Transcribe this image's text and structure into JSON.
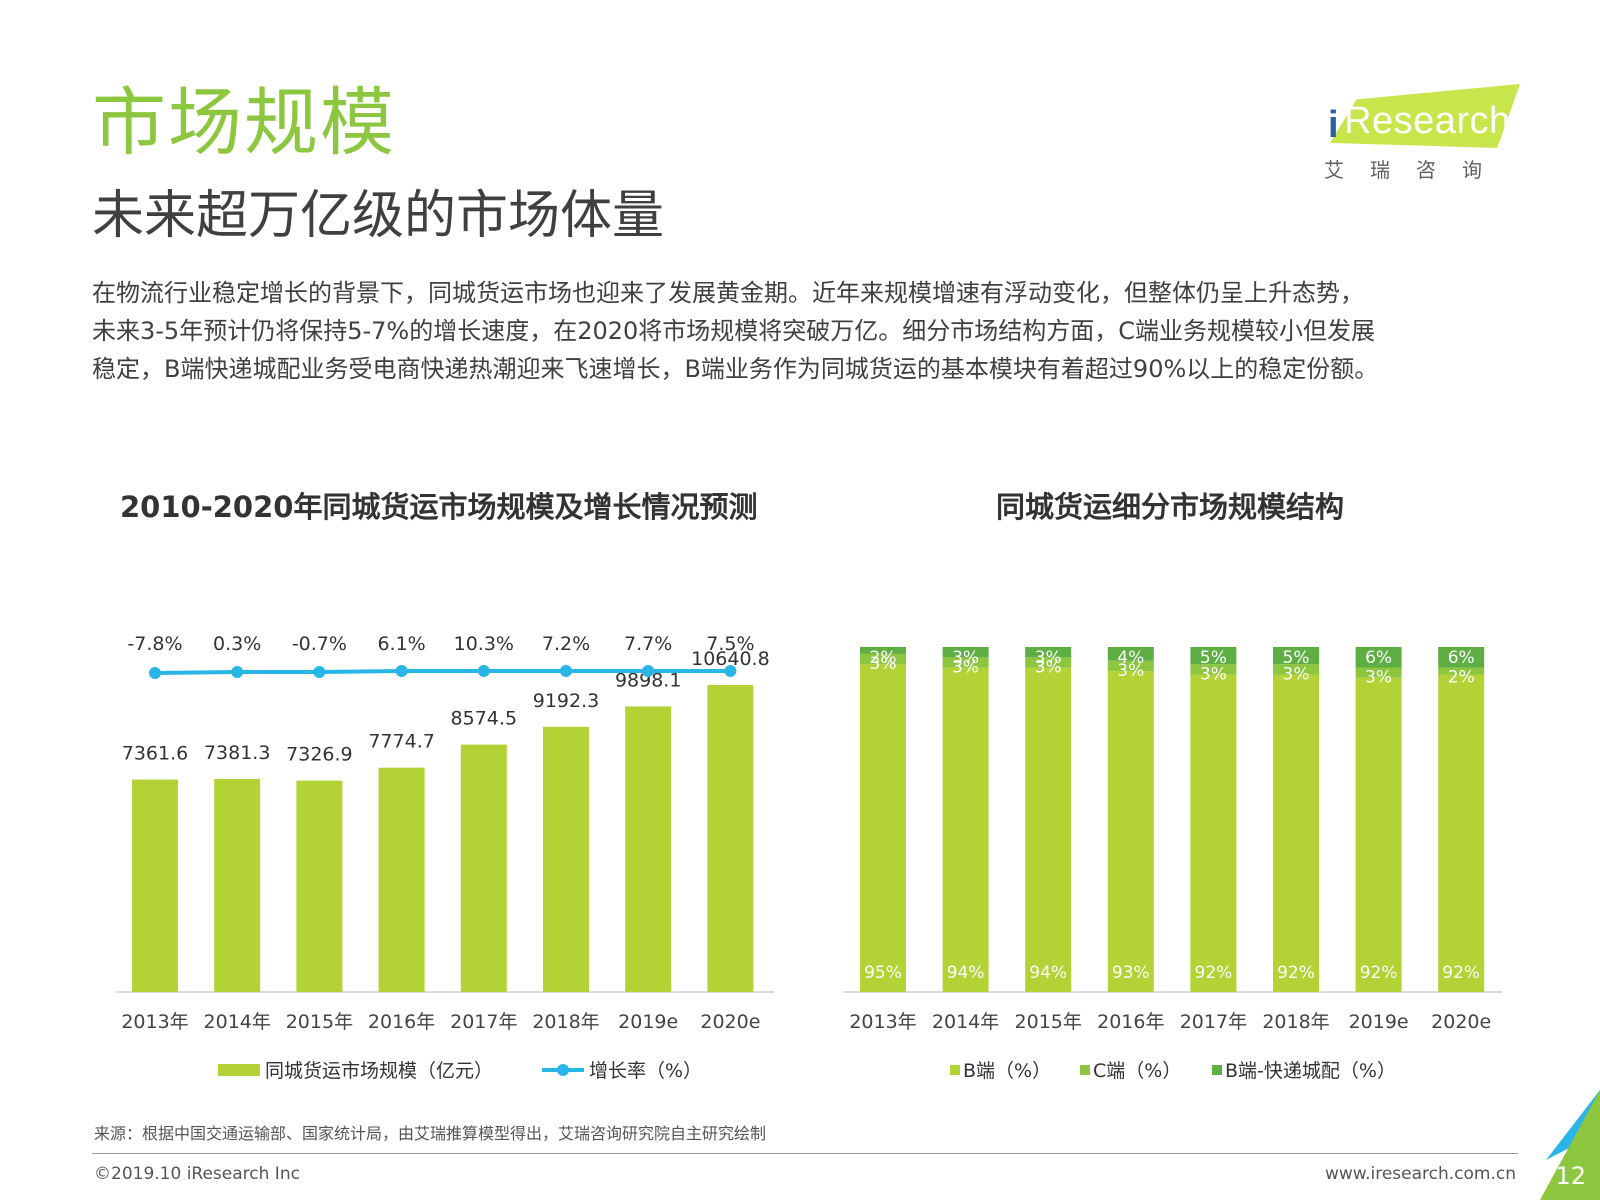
{
  "page": {
    "title": "市场规模",
    "subtitle": "未来超万亿级的市场体量",
    "body_lines": [
      "在物流行业稳定增长的背景下，同城货运市场也迎来了发展黄金期。近年来规模增速有浮动变化，但整体仍呈上升态势，",
      "未来3-5年预计仍将保持5-7%的增长速度，在2020将市场规模将突破万亿。细分市场结构方面，C端业务规模较小但发展",
      "稳定，B端快递城配业务受电商快递热潮迎来飞速增长，B端业务作为同城货运的基本模块有着超过90%以上的稳定份额。"
    ],
    "logo": {
      "i": "i",
      "text": "Research",
      "cn": "艾瑞咨询"
    },
    "source": "来源：根据中国交通运输部、国家统计局，由艾瑞推算模型得出，艾瑞咨询研究院自主研究绘制",
    "copyright": "©2019.10 iResearch Inc",
    "website": "www.iresearch.com.cn",
    "page_number": "12"
  },
  "chart_data": [
    {
      "type": "bar",
      "title": "2010-2020年同城货运市场规模及增长情况预测",
      "categories": [
        "2013年",
        "2014年",
        "2015年",
        "2016年",
        "2017年",
        "2018年",
        "2019e",
        "2020e"
      ],
      "series": [
        {
          "name": "同城货运市场规模（亿元）",
          "type": "bar",
          "color": "#b2d235",
          "values": [
            7361.6,
            7381.3,
            7326.9,
            7774.7,
            8574.5,
            9192.3,
            9898.1,
            10640.8
          ],
          "labels": [
            "7361.6",
            "7381.3",
            "7326.9",
            "7774.7",
            "8574.5",
            "9192.3",
            "9898.1",
            "10640.8"
          ]
        },
        {
          "name": "增长率（%）",
          "type": "line",
          "color": "#29b6e6",
          "values": [
            -7.8,
            0.3,
            -0.7,
            6.1,
            10.3,
            7.2,
            7.7,
            7.5
          ],
          "labels": [
            "-7.8%",
            "0.3%",
            "-0.7%",
            "6.1%",
            "10.3%",
            "7.2%",
            "7.7%",
            "7.5%"
          ]
        }
      ],
      "legend_position": "bottom"
    },
    {
      "type": "bar",
      "stacked": true,
      "percent": true,
      "title": "同城货运细分市场规模结构",
      "categories": [
        "2013年",
        "2014年",
        "2015年",
        "2016年",
        "2017年",
        "2018年",
        "2019e",
        "2020e"
      ],
      "series": [
        {
          "name": "B端（%）",
          "color": "#b2d235",
          "values": [
            95,
            94,
            94,
            93,
            92,
            92,
            92,
            92
          ]
        },
        {
          "name": "C端（%）",
          "color": "#8cc63f",
          "values": [
            3,
            3,
            3,
            3,
            3,
            3,
            3,
            2
          ]
        },
        {
          "name": "B端-快递城配（%）",
          "color": "#5fae44",
          "values": [
            2,
            3,
            3,
            4,
            5,
            5,
            6,
            6
          ]
        }
      ],
      "legend_position": "bottom"
    }
  ]
}
